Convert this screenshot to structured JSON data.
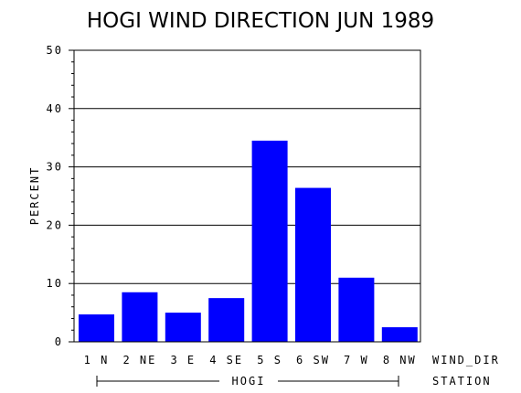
{
  "chart_data": {
    "type": "bar",
    "title": "HOGI WIND DIRECTION JUN 1989",
    "ylabel": "PERCENT",
    "xlabel": "WIND_DIR",
    "group_axis_label": "STATION",
    "group_label": "HOGI",
    "categories": [
      "1 N",
      "2 NE",
      "3 E",
      "4 SE",
      "5 S",
      "6 SW",
      "7 W",
      "8 NW"
    ],
    "values": [
      4.7,
      8.5,
      5.0,
      7.5,
      34.5,
      26.4,
      11.0,
      2.5
    ],
    "ylim": [
      0,
      50
    ],
    "yticks": [
      0,
      10,
      20,
      30,
      40,
      50
    ],
    "grid": true,
    "bar_color": "#0000ff"
  }
}
